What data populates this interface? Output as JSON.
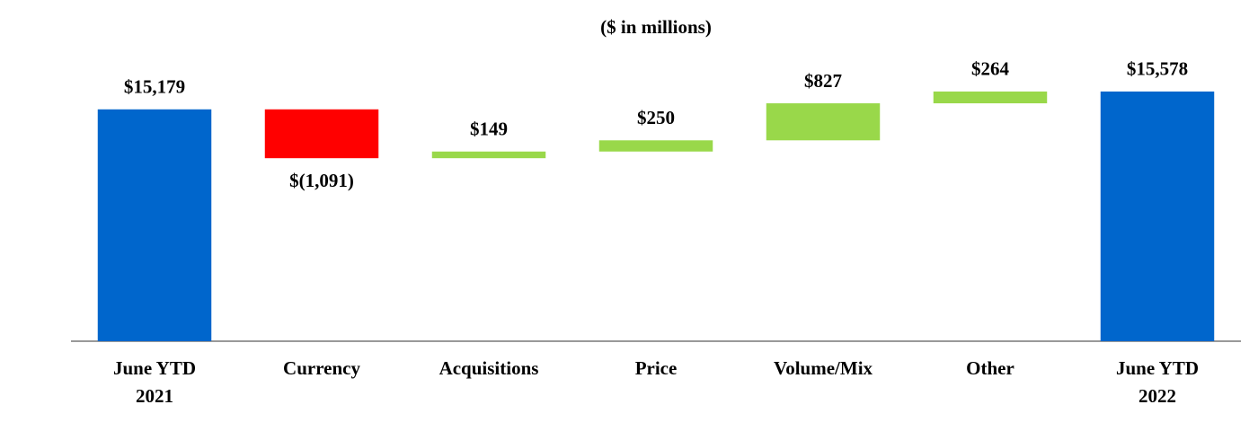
{
  "chart_data": {
    "type": "waterfall",
    "title": "($ in millions)",
    "categories": [
      "June YTD 2021",
      "Currency",
      "Acquisitions",
      "Price",
      "Volume/Mix",
      "Other",
      "June YTD 2022"
    ],
    "values": [
      15179,
      -1091,
      149,
      250,
      827,
      264,
      15578
    ],
    "value_labels": [
      "$15,179",
      "$(1,091)",
      "$149",
      "$250",
      "$827",
      "$264",
      "$15,578"
    ],
    "measures": [
      "absolute",
      "relative",
      "relative",
      "relative",
      "relative",
      "relative",
      "total"
    ],
    "colors": {
      "total": "#0066cc",
      "increase": "#99d84a",
      "decrease": "#ff0000"
    },
    "ylim": [
      10000,
      17000
    ]
  }
}
